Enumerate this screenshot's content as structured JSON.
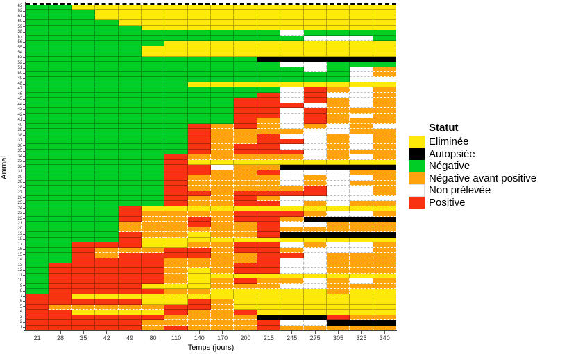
{
  "chart_data": {
    "type": "heatmap",
    "xlabel": "Temps (jours)",
    "ylabel": "Animal",
    "x": [
      "21",
      "28",
      "35",
      "42",
      "49",
      "80",
      "110",
      "140",
      "170",
      "200",
      "215",
      "245",
      "275",
      "305",
      "325",
      "340"
    ],
    "legend_title": "Statut",
    "legend_order": [
      "Y",
      "B",
      "G",
      "O",
      "W",
      "R"
    ],
    "statuses": {
      "Y": {
        "label": "Eliminée",
        "color": "#FFE90B"
      },
      "B": {
        "label": "Autopsiée",
        "color": "#000000"
      },
      "G": {
        "label": "Négative",
        "color": "#00CE25"
      },
      "O": {
        "label": "Négative avant positive",
        "color": "#FFA40D"
      },
      "W": {
        "label": "Non prélevée",
        "color": "#FFFFFF"
      },
      "R": {
        "label": "Positive",
        "color": "#F93211"
      }
    },
    "rows": [
      {
        "animal": 63,
        "statuses": "GGYYYYYYYYYYYYYY"
      },
      {
        "animal": 62,
        "statuses": "GGGYYYYYYYYYYYYY"
      },
      {
        "animal": 61,
        "statuses": "GGGYYYYYYYYYYYYY"
      },
      {
        "animal": 60,
        "statuses": "GGGGYYYYYYYYYYYY"
      },
      {
        "animal": 59,
        "statuses": "GGGGGYYYYYYYYYYY"
      },
      {
        "animal": 58,
        "statuses": "GGGGGGGGGGGWGGGG"
      },
      {
        "animal": 57,
        "statuses": "GGGGGGGGGGGGWWWG"
      },
      {
        "animal": 56,
        "statuses": "GGGGGGYYYYYYYYYY"
      },
      {
        "animal": 55,
        "statuses": "GGGGGYYYYYYYYYYY"
      },
      {
        "animal": 54,
        "statuses": "GGGGGYYYYYYYYYYY"
      },
      {
        "animal": 53,
        "statuses": "GGGGGGGGGGBBBBBB"
      },
      {
        "animal": 52,
        "statuses": "GGGGGGGGGGGWWGGG"
      },
      {
        "animal": 51,
        "statuses": "GGGGGGGGGGGGWGWO"
      },
      {
        "animal": 50,
        "statuses": "GGGGGGGGGGGGGGWO"
      },
      {
        "animal": 49,
        "statuses": "GGGGGGGGGGGGGGWW"
      },
      {
        "animal": 48,
        "statuses": "GGGGGGGYYYYYYYYY"
      },
      {
        "animal": 47,
        "statuses": "GGGGGGGGGGGWROWO"
      },
      {
        "animal": 46,
        "statuses": "GGGGGGGGGGRWRWWO"
      },
      {
        "animal": 45,
        "statuses": "GGGGGGGGGRRWROWO"
      },
      {
        "animal": 44,
        "statuses": "GGGGGGGGGRRRWOWO"
      },
      {
        "animal": 43,
        "statuses": "GGGGGGGGGRRWROOO"
      },
      {
        "animal": 42,
        "statuses": "GGGGGGGGGRRWROWO"
      },
      {
        "animal": 41,
        "statuses": "GGGGGGGGGROWROOO"
      },
      {
        "animal": 40,
        "statuses": "GGGGGGGROROWOWOW"
      },
      {
        "animal": 39,
        "statuses": "GGGGGGGROOOOWWOO"
      },
      {
        "animal": 38,
        "statuses": "GGGGGGGROORWWOWO"
      },
      {
        "animal": 37,
        "statuses": "GGGGGGGROORRWOWO"
      },
      {
        "animal": 36,
        "statuses": "GGGGGGGRORRWWOWO"
      },
      {
        "animal": 35,
        "statuses": "GGGGGGGRORRRWOOO"
      },
      {
        "animal": 34,
        "statuses": "GGGGGGROOOOOWOWO"
      },
      {
        "animal": 33,
        "statuses": "GGGGGGRYYYYYYYYY"
      },
      {
        "animal": 32,
        "statuses": "GGGGGGRRWOOBBBBB"
      },
      {
        "animal": 31,
        "statuses": "GGGGGGRROORWWWOO"
      },
      {
        "animal": 30,
        "statuses": "GGGGGGROOOOWOWWO"
      },
      {
        "animal": 29,
        "statuses": "GGGGGGROOOOWOWOO"
      },
      {
        "animal": 28,
        "statuses": "GGGGGGROOOOORWWO"
      },
      {
        "animal": 27,
        "statuses": "GGGGGGRRORRRRWWO"
      },
      {
        "animal": 26,
        "statuses": "GGGGGGROOROWWWWW"
      },
      {
        "animal": 25,
        "statuses": "GGGGGGROORRWOWOO"
      },
      {
        "animal": 24,
        "statuses": "GGGGRYYYYYYYYYYY"
      },
      {
        "animal": 23,
        "statuses": "GGGGROOOORRROWWO"
      },
      {
        "animal": 22,
        "statuses": "GGGGROORORROBBBB"
      },
      {
        "animal": 21,
        "statuses": "GGGGOOOROORWWOOO"
      },
      {
        "animal": 20,
        "statuses": "GGGGOOOOOOROOOOO"
      },
      {
        "animal": 19,
        "statuses": "GGGGROOYOORBBBBB"
      },
      {
        "animal": 18,
        "statuses": "GGGGRYYYYYYYYYYY"
      },
      {
        "animal": 17,
        "statuses": "GGRRRYYOORRWOWWO"
      },
      {
        "animal": 16,
        "statuses": "GGROOORRORROWWWO"
      },
      {
        "animal": 15,
        "statuses": "GGRORRRROORRWOOO"
      },
      {
        "animal": 14,
        "statuses": "GGRRRROOOORWWOOO"
      },
      {
        "animal": 13,
        "statuses": "GRRRRROOORRWWOOO"
      },
      {
        "animal": 12,
        "statuses": "GRRRRROYORRWWOOO"
      },
      {
        "animal": 11,
        "statuses": "GRRRRROYYYYYYYYY"
      },
      {
        "animal": 10,
        "statuses": "GRRRRROYOROOWOWO"
      },
      {
        "animal": 9,
        "statuses": "GRRRRYYYOOOWWOOO"
      },
      {
        "animal": 8,
        "statuses": "GRRRRROOYYYYYOYY"
      },
      {
        "animal": 7,
        "statuses": "RRYYYYYYYYYYYYYY"
      },
      {
        "animal": 6,
        "statuses": "RRRRRYYROYYYYYYY"
      },
      {
        "animal": 5,
        "statuses": "ROOOOORROYYYYYYY"
      },
      {
        "animal": 4,
        "statuses": "RRYYYYROORYYYYYY"
      },
      {
        "animal": 3,
        "statuses": "RRRRRROOOOBBBROO"
      },
      {
        "animal": 2,
        "statuses": "RRRRROOOOORWWBBB"
      },
      {
        "animal": 1,
        "statuses": "RRRRROROOOROOOOO"
      }
    ]
  }
}
